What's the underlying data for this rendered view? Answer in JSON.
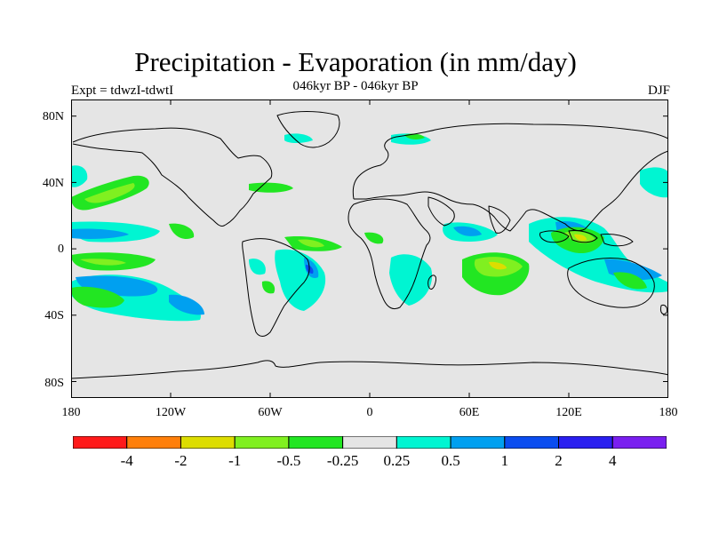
{
  "title": "Precipitation - Evaporation (in mm/day)",
  "subtitle": "046kyr BP - 046kyr BP",
  "expt_label": "Expt = tdwzI-tdwtI",
  "season": "DJF",
  "y_tick_labels": [
    "80N",
    "40N",
    "0",
    "40S",
    "80S"
  ],
  "x_tick_labels": [
    "180",
    "120W",
    "60W",
    "0",
    "60E",
    "120E",
    "180"
  ],
  "colorbar": {
    "labels": [
      "-4",
      "-2",
      "-1",
      "-0.5",
      "-0.25",
      "0.25",
      "0.5",
      "1",
      "2",
      "4"
    ],
    "colors": [
      "#ff1a1a",
      "#ff7f0a",
      "#dddd00",
      "#80f020",
      "#22e622",
      "#e5e5e5",
      "#00f5d2",
      "#00a0f0",
      "#0a4df0",
      "#2a1ff0",
      "#7a1ff0"
    ]
  },
  "colors": {
    "ocean_background": "#e5e5e5",
    "coastline": "#000000"
  }
}
